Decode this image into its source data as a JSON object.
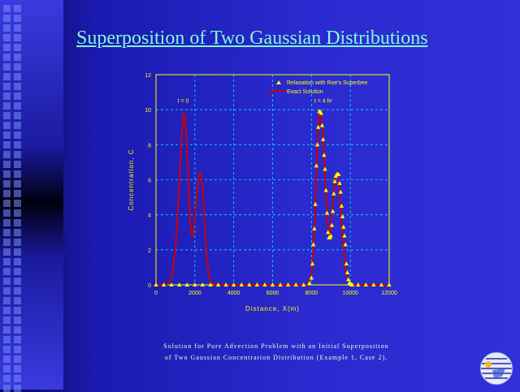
{
  "slide": {
    "title": "Superposition of Two Gaussian Distributions",
    "caption_line1": "Solution for Pure Advection Problem with an Initial Superposition",
    "caption_line2": "of Two Gaussian Concentration Distribution (Example 1, Case 2)."
  },
  "colors": {
    "background": "#2a2ad0",
    "title": "#7fffd4",
    "axis": "#ffff00",
    "grid": "#00e5ff",
    "exact_line": "#cc0000",
    "markers": "#ffff00"
  },
  "chart_data": {
    "type": "line",
    "xlabel": "Distance, X(m)",
    "ylabel": "Concentration, C",
    "xlim": [
      0,
      12000
    ],
    "ylim": [
      0,
      12
    ],
    "xticks": [
      0,
      2000,
      4000,
      6000,
      8000,
      10000,
      12000
    ],
    "yticks": [
      0,
      2,
      4,
      6,
      8,
      10,
      12
    ],
    "grid": true,
    "legend_position": "top-right",
    "annotations": [
      {
        "text": "t = 0",
        "x": 1400,
        "y": 10.4
      },
      {
        "text": "t = 4 hr",
        "x": 8600,
        "y": 10.4
      }
    ],
    "series": [
      {
        "name": "Exact Solution",
        "style": "line",
        "x": [
          0,
          200,
          400,
          600,
          800,
          1000,
          1100,
          1200,
          1300,
          1400,
          1500,
          1600,
          1700,
          1800,
          1900,
          2000,
          2100,
          2200,
          2300,
          2400,
          2500,
          2600,
          2700,
          2800,
          3000,
          3200,
          3400,
          3600,
          3800,
          4000,
          5000,
          6000,
          7000,
          7400,
          7600,
          7700,
          7800,
          7900,
          8000,
          8100,
          8200,
          8300,
          8400,
          8500,
          8600,
          8700,
          8800,
          8900,
          9000,
          9100,
          9200,
          9300,
          9400,
          9500,
          9600,
          9700,
          9800,
          9900,
          10000,
          10100,
          10200,
          10300,
          10400,
          10600,
          10800,
          11000,
          12000
        ],
        "y": [
          0,
          0,
          0,
          0.05,
          0.4,
          2.0,
          3.8,
          6.0,
          8.2,
          9.8,
          9.5,
          7.5,
          4.8,
          3.0,
          2.8,
          3.8,
          5.2,
          6.3,
          6.4,
          5.6,
          3.6,
          1.8,
          0.7,
          0.2,
          0.02,
          0,
          0,
          0,
          0,
          0,
          0,
          0,
          0,
          0,
          0,
          0.01,
          0.05,
          0.2,
          0.6,
          1.9,
          4.5,
          8.1,
          9.7,
          9.8,
          8.6,
          6.2,
          3.8,
          2.8,
          3.2,
          4.8,
          6.2,
          6.4,
          5.8,
          4.4,
          2.8,
          1.4,
          0.6,
          0.2,
          0.05,
          0.01,
          0,
          0,
          0,
          0,
          0,
          0,
          0
        ]
      },
      {
        "name": "Relaxation with Roe's Superbee",
        "style": "marker",
        "x": [
          0,
          400,
          800,
          1200,
          1600,
          2000,
          2400,
          2800,
          3200,
          3600,
          4000,
          4400,
          4800,
          5200,
          5600,
          6000,
          6400,
          6800,
          7200,
          7600,
          7900,
          8000,
          8050,
          8100,
          8150,
          8200,
          8250,
          8300,
          8350,
          8400,
          8450,
          8500,
          8550,
          8600,
          8650,
          8700,
          8750,
          8800,
          8850,
          8900,
          8950,
          9000,
          9050,
          9100,
          9150,
          9200,
          9250,
          9300,
          9350,
          9400,
          9450,
          9500,
          9550,
          9600,
          9650,
          9700,
          9750,
          9800,
          9850,
          9900,
          9950,
          10000,
          10050,
          10100,
          10400,
          10800,
          11200,
          11600,
          12000
        ],
        "y": [
          0,
          0,
          0,
          0,
          0,
          0,
          0,
          0,
          0,
          0,
          0,
          0,
          0,
          0,
          0,
          0,
          0,
          0,
          0,
          0,
          0.1,
          0.4,
          1.2,
          2.3,
          3.2,
          4.6,
          6.8,
          8.0,
          9.0,
          9.9,
          9.9,
          9.8,
          9.1,
          8.3,
          7.4,
          6.6,
          5.4,
          4.1,
          3.0,
          2.7,
          2.7,
          2.8,
          3.4,
          4.2,
          5.2,
          5.9,
          6.2,
          6.3,
          6.3,
          6.3,
          5.8,
          5.3,
          4.5,
          3.9,
          3.3,
          2.8,
          2.3,
          1.2,
          0.7,
          0.3,
          0.1,
          0.05,
          0.02,
          0,
          0,
          0,
          0,
          0,
          0
        ]
      }
    ]
  }
}
